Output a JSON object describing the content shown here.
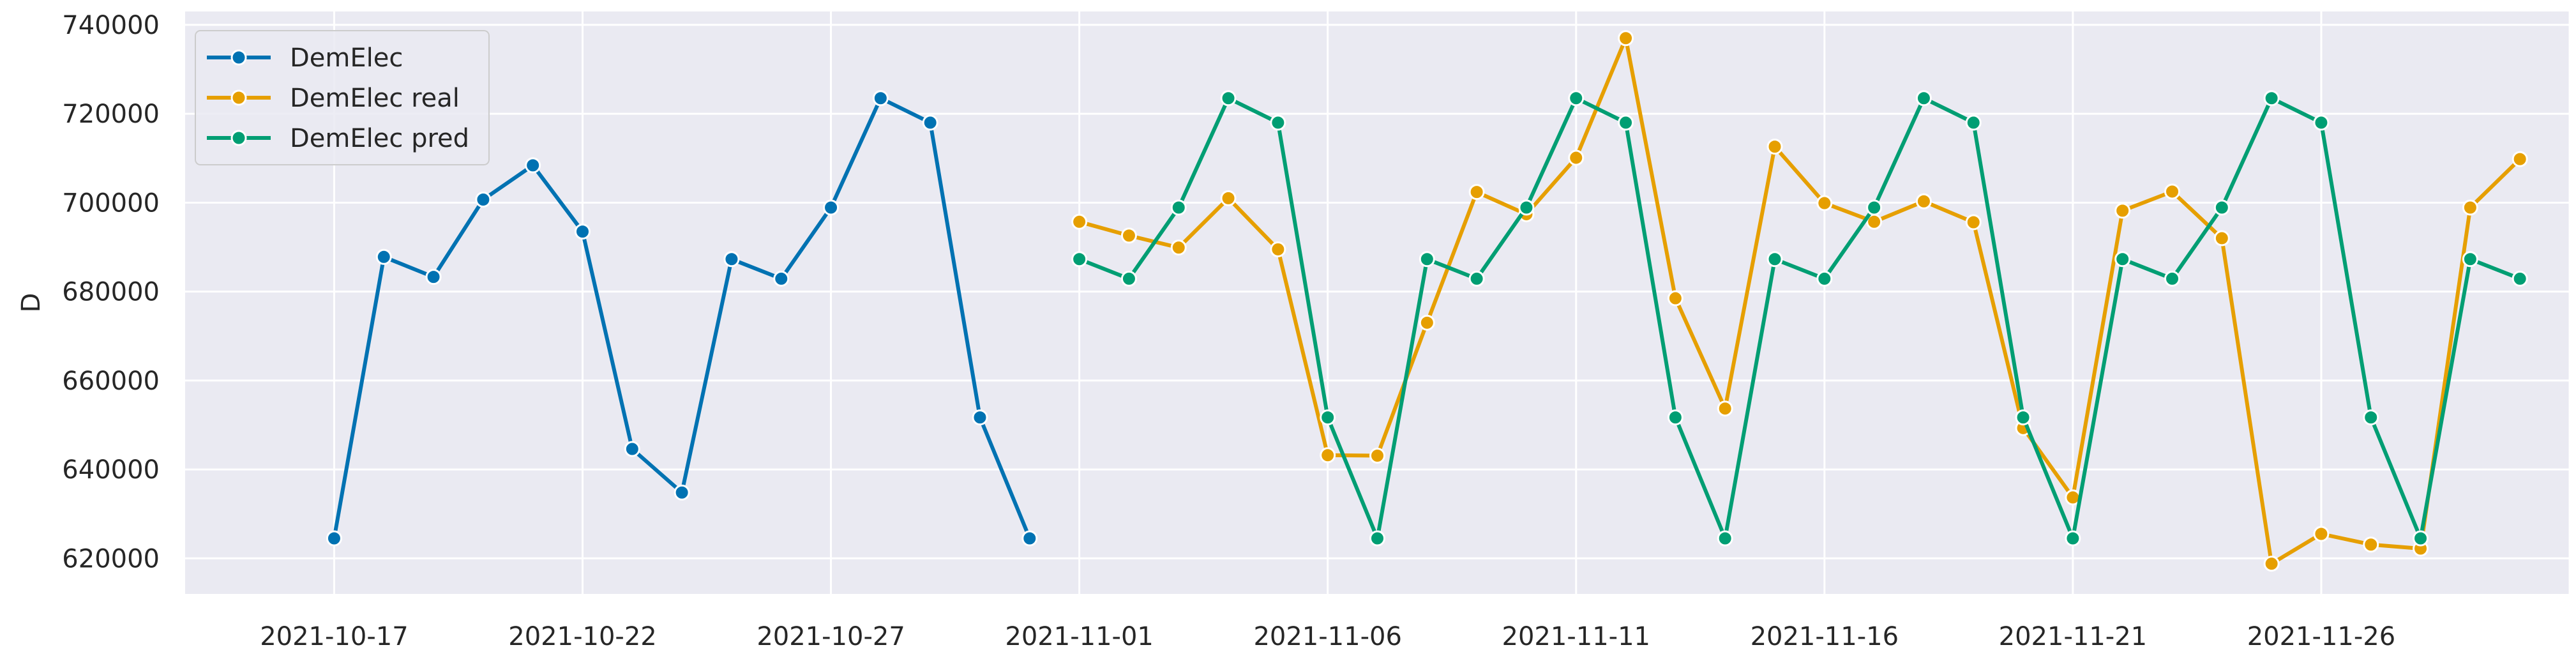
{
  "chart_data": {
    "type": "line",
    "title": "",
    "xlabel": "",
    "ylabel": "D",
    "ylim": [
      612000,
      743000
    ],
    "xlim": [
      "2021-10-14",
      "2021-12-01"
    ],
    "yticks": [
      620000,
      640000,
      660000,
      680000,
      700000,
      720000,
      740000
    ],
    "xticks": [
      "2021-10-17",
      "2021-10-22",
      "2021-10-27",
      "2021-11-01",
      "2021-11-06",
      "2021-11-11",
      "2021-11-16",
      "2021-11-21",
      "2021-11-26"
    ],
    "grid": true,
    "legend_position": "top-left",
    "series": [
      {
        "name": "DemElec",
        "color": "#0072b2",
        "x": [
          "2021-10-17",
          "2021-10-18",
          "2021-10-19",
          "2021-10-20",
          "2021-10-21",
          "2021-10-22",
          "2021-10-23",
          "2021-10-24",
          "2021-10-25",
          "2021-10-26",
          "2021-10-27",
          "2021-10-28",
          "2021-10-29",
          "2021-10-30",
          "2021-10-31"
        ],
        "values": [
          624500,
          687800,
          683300,
          700700,
          708400,
          693500,
          644600,
          634800,
          687300,
          682900,
          698900,
          723500,
          718000,
          651700,
          624500
        ]
      },
      {
        "name": "DemElec real",
        "color": "#e69f00",
        "x": [
          "2021-11-01",
          "2021-11-02",
          "2021-11-03",
          "2021-11-04",
          "2021-11-05",
          "2021-11-06",
          "2021-11-07",
          "2021-11-08",
          "2021-11-09",
          "2021-11-10",
          "2021-11-11",
          "2021-11-12",
          "2021-11-13",
          "2021-11-14",
          "2021-11-15",
          "2021-11-16",
          "2021-11-17",
          "2021-11-18",
          "2021-11-19",
          "2021-11-20",
          "2021-11-21",
          "2021-11-22",
          "2021-11-23",
          "2021-11-24",
          "2021-11-25",
          "2021-11-26",
          "2021-11-27",
          "2021-11-28",
          "2021-11-29",
          "2021-11-30"
        ],
        "values": [
          695700,
          692600,
          689900,
          701000,
          689500,
          643200,
          643100,
          673000,
          702400,
          697400,
          710100,
          737000,
          678500,
          653700,
          712600,
          699900,
          695700,
          700300,
          695600,
          649300,
          633700,
          698200,
          702500,
          692000,
          618800,
          625500,
          623100,
          622200,
          698900,
          709800
        ]
      },
      {
        "name": "DemElec pred",
        "color": "#009e73",
        "x": [
          "2021-11-01",
          "2021-11-02",
          "2021-11-03",
          "2021-11-04",
          "2021-11-05",
          "2021-11-06",
          "2021-11-07",
          "2021-11-08",
          "2021-11-09",
          "2021-11-10",
          "2021-11-11",
          "2021-11-12",
          "2021-11-13",
          "2021-11-14",
          "2021-11-15",
          "2021-11-16",
          "2021-11-17",
          "2021-11-18",
          "2021-11-19",
          "2021-11-20",
          "2021-11-21",
          "2021-11-22",
          "2021-11-23",
          "2021-11-24",
          "2021-11-25",
          "2021-11-26",
          "2021-11-27",
          "2021-11-28",
          "2021-11-29",
          "2021-11-30"
        ],
        "values": [
          687300,
          682900,
          698900,
          723500,
          718000,
          651700,
          624500,
          687300,
          682900,
          698900,
          723500,
          718000,
          651700,
          624500,
          687300,
          682900,
          698900,
          723500,
          718000,
          651700,
          624500,
          687300,
          682900,
          698900,
          723500,
          718000,
          651700,
          624500,
          687300,
          682900
        ]
      }
    ]
  }
}
